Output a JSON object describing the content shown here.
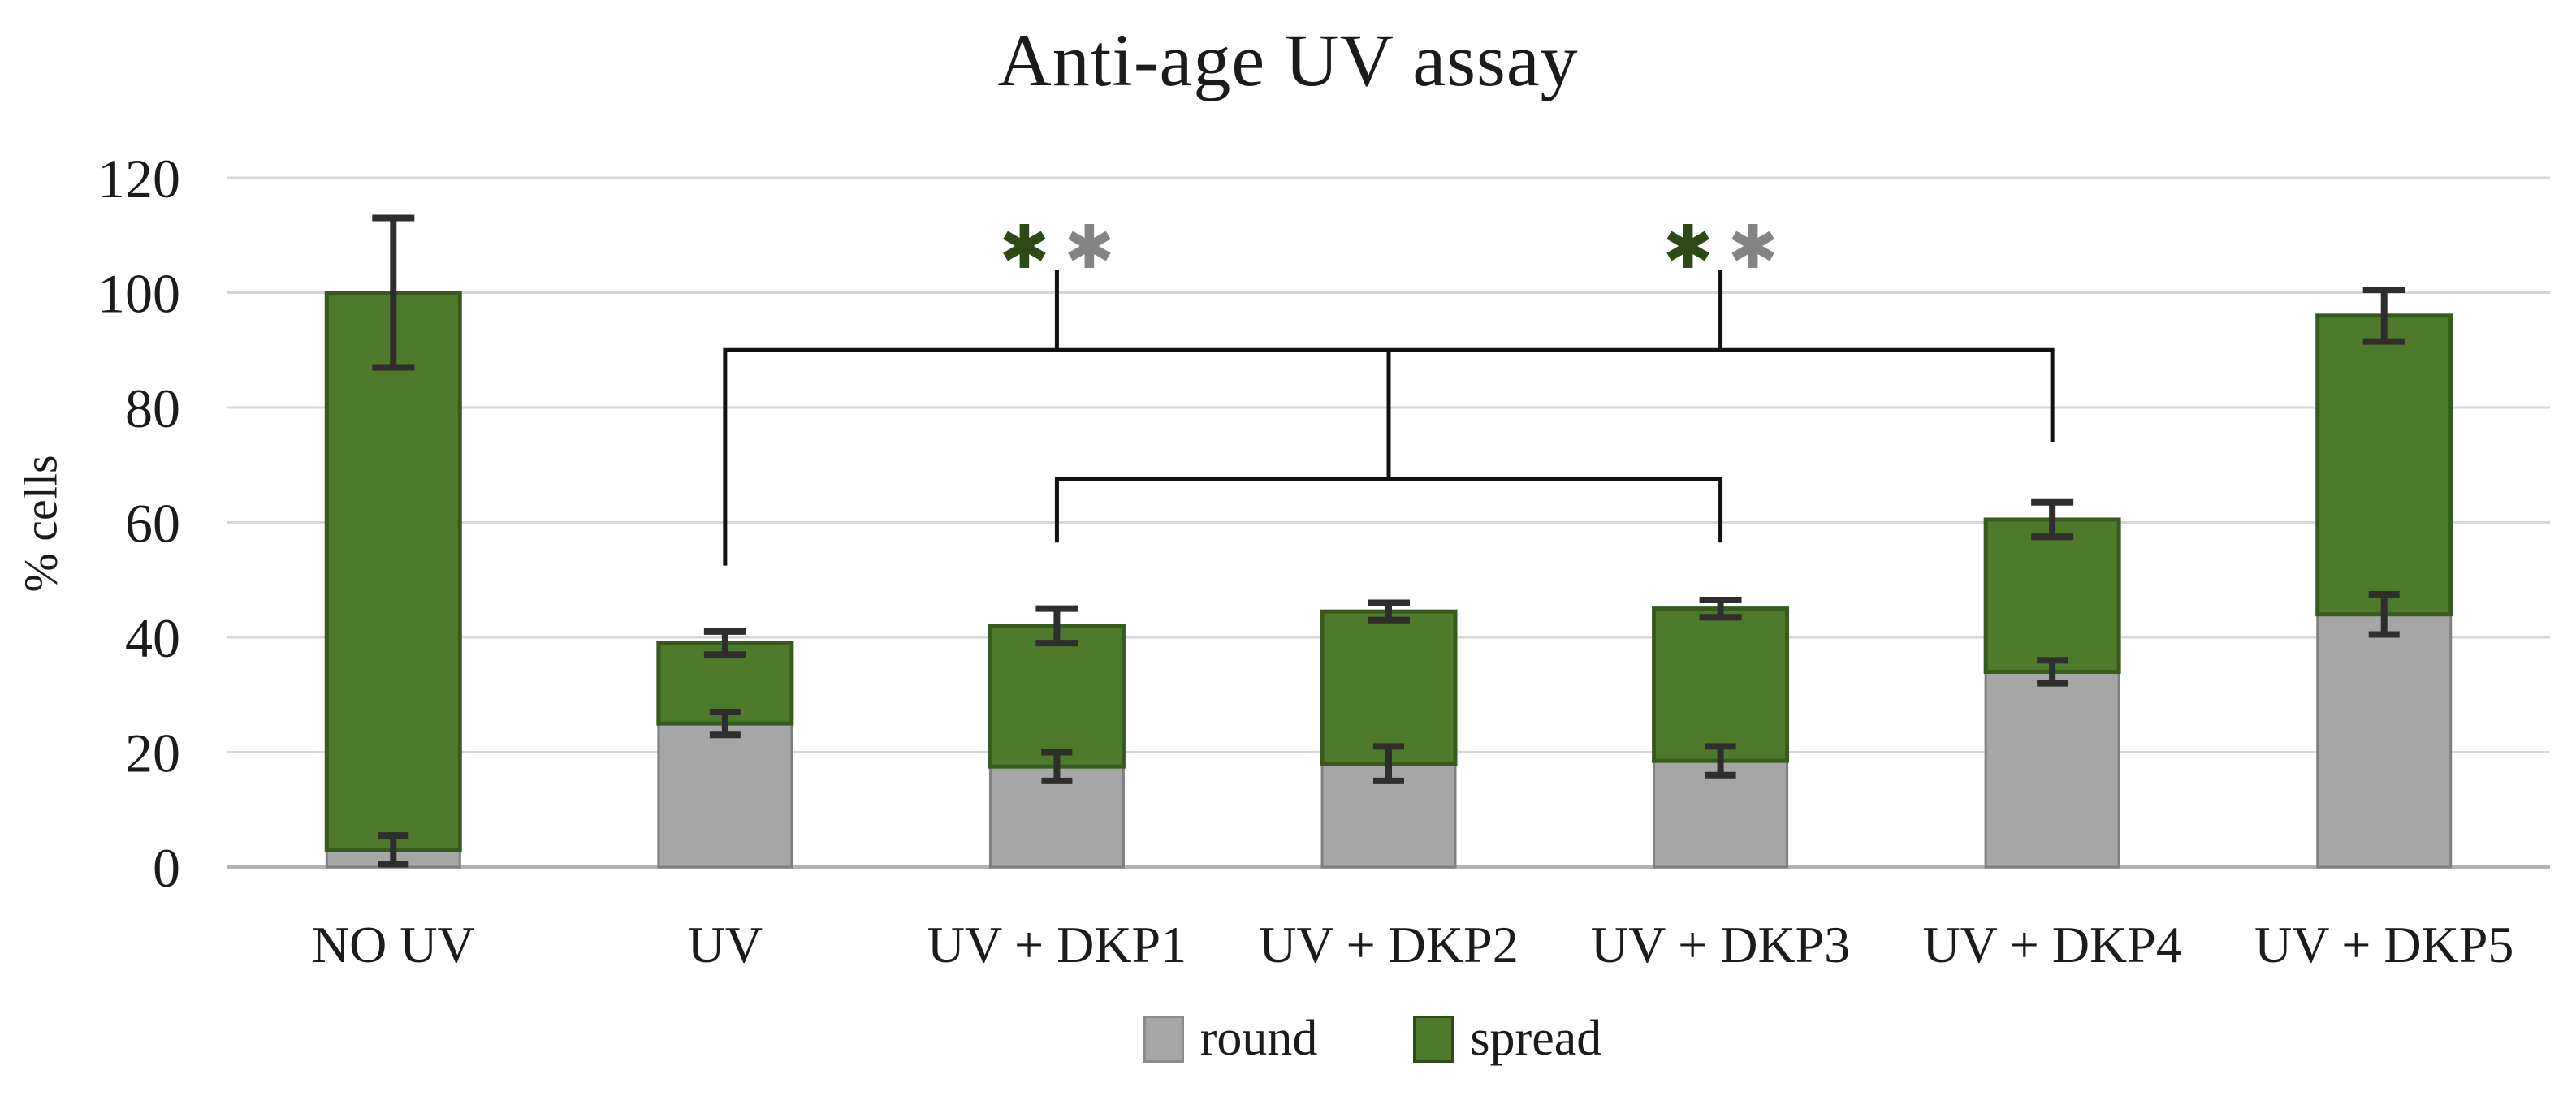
{
  "title": "Anti-age UV assay",
  "axes": {
    "y_label": "% cells",
    "y_ticks": [
      120,
      100,
      80,
      60,
      40,
      20,
      0
    ],
    "y_max": 120
  },
  "legend": {
    "items": [
      {
        "label": "round",
        "color": "#a6a6a6",
        "border": "#8c8c8c"
      },
      {
        "label": "spread",
        "color": "#4d7a2b",
        "border": "#2f4c17"
      }
    ]
  },
  "chart_data": {
    "type": "bar",
    "stacked": true,
    "title": "Anti-age UV assay",
    "xlabel": "",
    "ylabel": "% cells",
    "ylim": [
      0,
      120
    ],
    "grid": true,
    "legend_position": "bottom",
    "categories": [
      "NO UV",
      "UV",
      "UV + DKP1",
      "UV + DKP2",
      "UV + DKP3",
      "UV + DKP4",
      "UV + DKP5"
    ],
    "series": [
      {
        "name": "round",
        "color": "#a6a6a6",
        "border": "#7f7f7f",
        "values": [
          3,
          25,
          17.5,
          18,
          18.5,
          34,
          44
        ],
        "errors": [
          2.5,
          2,
          2.5,
          3,
          2.5,
          2,
          3.5
        ]
      },
      {
        "name": "spread",
        "color": "#4d7a2b",
        "border": "#375a1d",
        "values": [
          97,
          14,
          24.5,
          26.5,
          26.5,
          26.5,
          52
        ]
      }
    ],
    "totals": [
      100,
      39,
      42,
      44.5,
      45,
      60.5,
      96
    ],
    "total_errors": [
      13,
      2,
      3,
      1.5,
      1.5,
      3,
      4.5
    ],
    "significance": {
      "asterisk_pairs": [
        {
          "above_category": "UV + DKP1",
          "symbols": [
            {
              "glyph": "✱",
              "color": "#2d4a16"
            },
            {
              "glyph": "✱",
              "color": "#848484"
            }
          ]
        },
        {
          "above_category": "UV + DKP3",
          "symbols": [
            {
              "glyph": "✱",
              "color": "#2d4a16"
            },
            {
              "glyph": "✱",
              "color": "#848484"
            }
          ]
        }
      ],
      "brackets": {
        "upper": {
          "level": 90,
          "from_category": "UV",
          "to_category": "UV + DKP4",
          "left_tail_to": 52.5,
          "right_tail_to": 74,
          "stem_categories": [
            "UV + DKP1",
            "UV + DKP3"
          ],
          "stem_top": 104,
          "center_drop_category": "UV + DKP2",
          "center_drop_to": 67.5
        },
        "lower": {
          "level": 67.5,
          "from_category": "UV + DKP1",
          "to_category": "UV + DKP3",
          "tails_to": 56.5
        }
      }
    }
  },
  "colors": {
    "background": "#ffffff",
    "grid": "#d6d6d6",
    "axis_line": "#b3b3b3",
    "error_bar": "#2e2e2e",
    "bracket": "#111111",
    "text": "#1b1b1b"
  }
}
